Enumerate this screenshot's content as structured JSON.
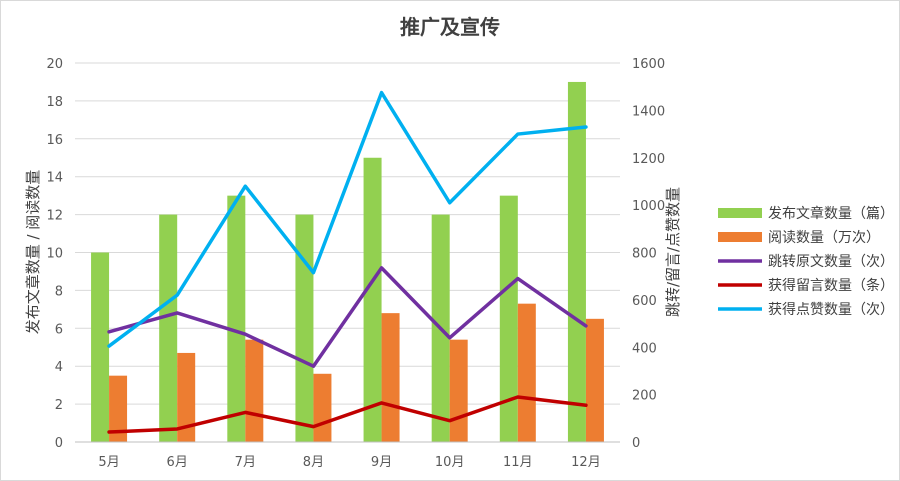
{
  "chart_data": {
    "type": "bar",
    "title": "推广及宣传",
    "categories": [
      "5月",
      "6月",
      "7月",
      "8月",
      "9月",
      "10月",
      "11月",
      "12月"
    ],
    "ylabel_left": "发布文章数量 / 阅读数量",
    "ylabel_right": "跳转/留言/点赞数量",
    "ylim_left": [
      0,
      20
    ],
    "ylim_right": [
      0,
      1600
    ],
    "yticks_left": [
      0,
      2,
      4,
      6,
      8,
      10,
      12,
      14,
      16,
      18,
      20
    ],
    "yticks_right": [
      0,
      200,
      400,
      600,
      800,
      1000,
      1200,
      1400,
      1600
    ],
    "grid": true,
    "legend_position": "right",
    "series": [
      {
        "name": "发布文章数量（篇）",
        "kind": "bar",
        "axis": "left",
        "color": "#92D050",
        "values": [
          10,
          12,
          13,
          12,
          15,
          12,
          13,
          19
        ]
      },
      {
        "name": "阅读数量（万次）",
        "kind": "bar",
        "axis": "left",
        "color": "#ED7D31",
        "values": [
          3.5,
          4.7,
          5.4,
          3.6,
          6.8,
          5.4,
          7.3,
          6.5
        ]
      },
      {
        "name": "跳转原文数量（次）",
        "kind": "line",
        "axis": "right",
        "color": "#7030A0",
        "values": [
          465,
          545,
          455,
          320,
          735,
          440,
          690,
          490
        ]
      },
      {
        "name": "获得留言数量（条）",
        "kind": "line",
        "axis": "right",
        "color": "#C00000",
        "values": [
          42,
          55,
          125,
          65,
          165,
          90,
          190,
          155
        ]
      },
      {
        "name": "获得点赞数量（次）",
        "kind": "line",
        "axis": "right",
        "color": "#00B0F0",
        "values": [
          405,
          620,
          1080,
          715,
          1475,
          1010,
          1300,
          1330
        ]
      }
    ]
  }
}
